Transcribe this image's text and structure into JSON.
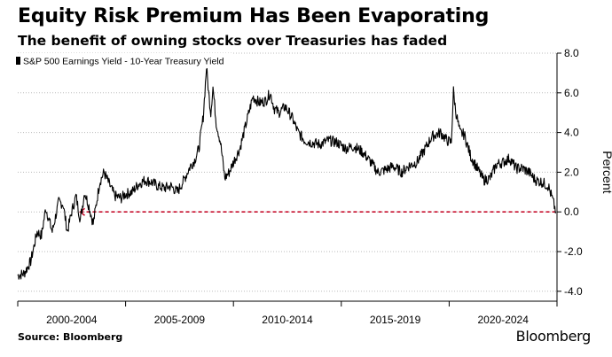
{
  "header": {
    "title": "Equity Risk Premium Has Been Evaporating",
    "subtitle": "The benefit of owning stocks over Treasuries has faded"
  },
  "footer": {
    "source": "Source: Bloomberg",
    "brand": "Bloomberg"
  },
  "colors": {
    "series": "#000000",
    "reference_line": "#c8102e",
    "gridline": "#bbbbbb",
    "axis": "#000000"
  },
  "chart_data": {
    "type": "line",
    "title": "Equity Risk Premium Has Been Evaporating",
    "subtitle": "The benefit of owning stocks over Treasuries has faded",
    "ylabel": "Percent",
    "xlabel": "",
    "ylim": [
      -4.5,
      8.0
    ],
    "xlim": [
      2000.0,
      2025.0
    ],
    "yticks": [
      8.0,
      6.0,
      4.0,
      2.0,
      0.0,
      -2.0,
      -4.0
    ],
    "ytick_labels": [
      "8.0",
      "6.0",
      "4.0",
      "2.0",
      "0.0",
      "-2.0",
      "-4.0"
    ],
    "x_period_boundaries": [
      2000.0,
      2005.0,
      2010.0,
      2015.0,
      2020.0,
      2025.0
    ],
    "x_category_labels": [
      "2000-2004",
      "2005-2009",
      "2010-2014",
      "2015-2019",
      "2020-2024"
    ],
    "grid": "horizontal dotted",
    "legend": {
      "position": "top-left",
      "entries": [
        "S&P 500 Earnings Yield - 10-Year Treasury Yield"
      ]
    },
    "series": [
      {
        "name": "S&P 500 Earnings Yield - 10-Year Treasury Yield",
        "x": [
          2000.0,
          2000.3,
          2000.6,
          2000.9,
          2001.1,
          2001.3,
          2001.6,
          2001.9,
          2002.1,
          2002.3,
          2002.5,
          2002.7,
          2002.9,
          2003.1,
          2003.3,
          2003.5,
          2003.8,
          2004.0,
          2004.2,
          2004.5,
          2004.8,
          2005.0,
          2005.3,
          2005.6,
          2005.9,
          2006.2,
          2006.5,
          2006.8,
          2007.1,
          2007.4,
          2007.7,
          2008.0,
          2008.2,
          2008.4,
          2008.6,
          2008.75,
          2008.85,
          2008.95,
          2009.05,
          2009.2,
          2009.4,
          2009.6,
          2009.8,
          2010.0,
          2010.3,
          2010.6,
          2010.9,
          2011.2,
          2011.5,
          2011.7,
          2011.9,
          2012.1,
          2012.4,
          2012.7,
          2013.0,
          2013.3,
          2013.6,
          2014.0,
          2014.4,
          2014.8,
          2015.2,
          2015.6,
          2016.0,
          2016.3,
          2016.7,
          2017.0,
          2017.4,
          2017.8,
          2018.1,
          2018.5,
          2018.9,
          2019.2,
          2019.6,
          2019.9,
          2020.1,
          2020.2,
          2020.3,
          2020.5,
          2020.7,
          2021.0,
          2021.3,
          2021.6,
          2021.9,
          2022.2,
          2022.5,
          2022.8,
          2023.1,
          2023.4,
          2023.7,
          2024.0,
          2024.3,
          2024.6,
          2024.8,
          2024.95
        ],
        "values": [
          -3.2,
          -3.1,
          -2.5,
          -1.0,
          -1.2,
          0.2,
          -1.0,
          0.5,
          0.4,
          -1.0,
          0.0,
          0.8,
          -0.4,
          1.0,
          0.3,
          -0.6,
          1.5,
          2.0,
          1.5,
          0.8,
          0.7,
          0.9,
          1.0,
          1.4,
          1.6,
          1.5,
          1.3,
          1.2,
          1.3,
          1.0,
          1.6,
          2.3,
          2.6,
          3.2,
          4.8,
          7.3,
          6.0,
          5.0,
          6.3,
          4.5,
          3.5,
          1.7,
          2.0,
          2.5,
          3.2,
          4.5,
          5.8,
          5.5,
          5.6,
          6.0,
          5.2,
          5.0,
          5.3,
          4.8,
          4.0,
          3.6,
          3.5,
          3.4,
          3.6,
          3.5,
          3.2,
          3.3,
          3.0,
          2.6,
          2.0,
          2.1,
          2.3,
          2.0,
          2.3,
          2.5,
          3.2,
          3.8,
          4.0,
          3.6,
          3.5,
          6.1,
          5.1,
          4.0,
          3.9,
          2.8,
          2.2,
          1.6,
          1.7,
          2.4,
          2.5,
          2.7,
          2.2,
          2.2,
          2.0,
          1.6,
          1.5,
          1.3,
          0.6,
          0.0
        ]
      }
    ],
    "reference_lines": [
      {
        "type": "horizontal",
        "y": 0.0,
        "x_from": 2002.9,
        "x_to": 2024.95,
        "style": "dashed",
        "arrow": "left"
      }
    ]
  }
}
